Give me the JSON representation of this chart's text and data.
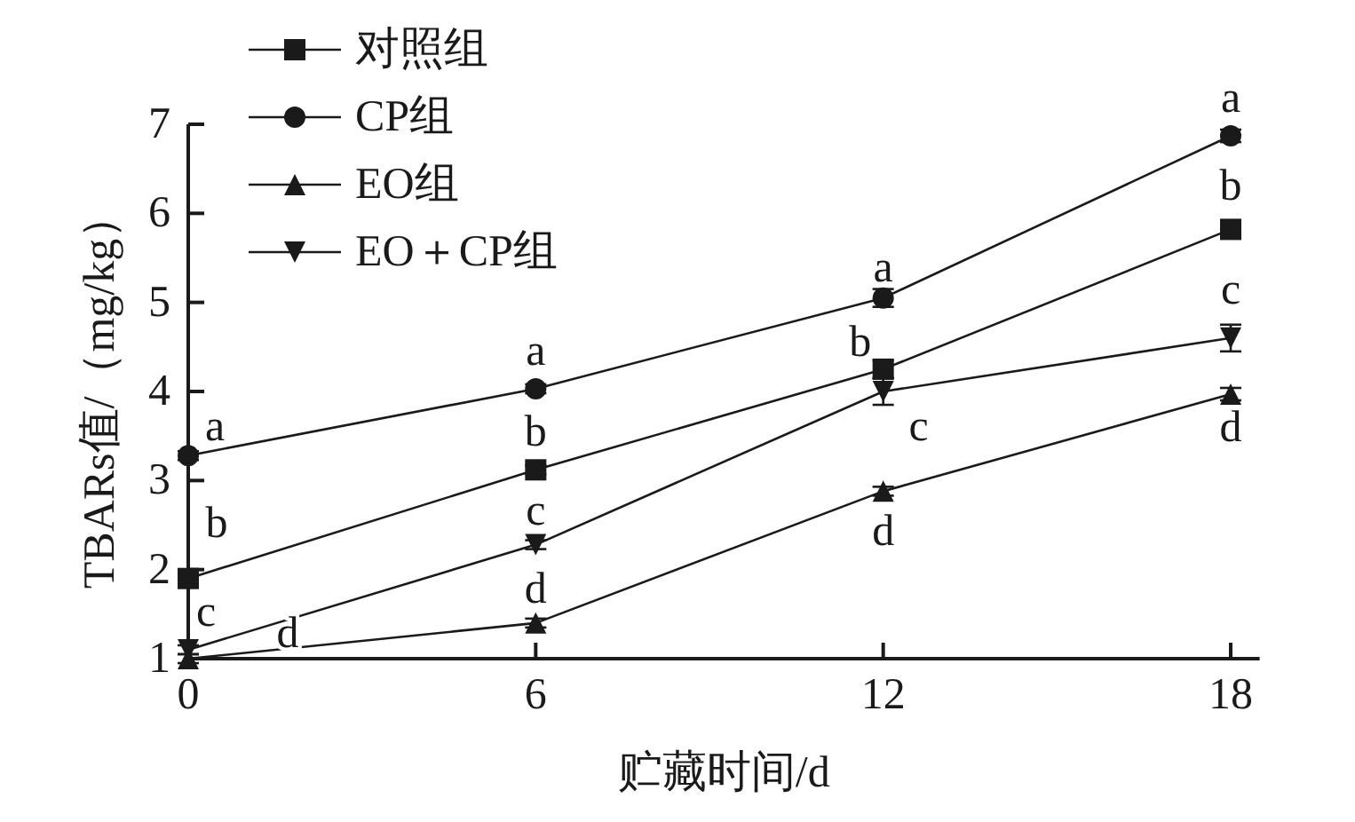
{
  "chart_data": {
    "type": "line",
    "xlabel": "贮藏时间/d",
    "ylabel": "TBARs值/（mg/kg）",
    "x": [
      0,
      6,
      12,
      18
    ],
    "xlim": [
      0,
      18.5
    ],
    "xticks": [
      0,
      6,
      12,
      18
    ],
    "ylim": [
      1,
      7
    ],
    "yticks": [
      1,
      2,
      3,
      4,
      5,
      6,
      7
    ],
    "grid": false,
    "legend": "top left",
    "line_style": "solid",
    "series": [
      {
        "name": "对照组",
        "color": "#1a1a1a",
        "marker": "square",
        "values": [
          1.9,
          3.12,
          4.25,
          5.82
        ],
        "errors": [
          0.05,
          0.05,
          0.1,
          0.1
        ]
      },
      {
        "name": "CP组",
        "color": "#1a1a1a",
        "marker": "circle",
        "values": [
          3.28,
          4.03,
          5.05,
          6.87
        ],
        "errors": [
          0.05,
          0.05,
          0.1,
          0.07
        ]
      },
      {
        "name": "EO组",
        "color": "#1a1a1a",
        "marker": "triangle",
        "values": [
          1.0,
          1.4,
          2.88,
          3.97
        ],
        "errors": [
          0.05,
          0.05,
          0.05,
          0.07
        ]
      },
      {
        "name": "EO＋CP组",
        "color": "#1a1a1a",
        "marker": "triangle-down",
        "values": [
          1.1,
          2.28,
          4.0,
          4.6
        ],
        "errors": [
          0.05,
          0.05,
          0.15,
          0.15
        ]
      }
    ],
    "annotations": [
      {
        "text": "a",
        "x": 0,
        "y": 3.28
      },
      {
        "text": "b",
        "x": 0,
        "y": 1.9
      },
      {
        "text": "c",
        "x": 0,
        "y": 1.1
      },
      {
        "text": "d",
        "x": 0,
        "y": 1.0
      },
      {
        "text": "a",
        "x": 6,
        "y": 4.03
      },
      {
        "text": "b",
        "x": 6,
        "y": 3.12
      },
      {
        "text": "c",
        "x": 6,
        "y": 2.28
      },
      {
        "text": "d",
        "x": 6,
        "y": 1.4
      },
      {
        "text": "a",
        "x": 12,
        "y": 5.05
      },
      {
        "text": "b",
        "x": 12,
        "y": 4.25
      },
      {
        "text": "c",
        "x": 12,
        "y": 4.0
      },
      {
        "text": "d",
        "x": 12,
        "y": 2.88
      },
      {
        "text": "a",
        "x": 18,
        "y": 6.87
      },
      {
        "text": "b",
        "x": 18,
        "y": 5.82
      },
      {
        "text": "c",
        "x": 18,
        "y": 4.6
      },
      {
        "text": "d",
        "x": 18,
        "y": 3.97
      }
    ]
  }
}
